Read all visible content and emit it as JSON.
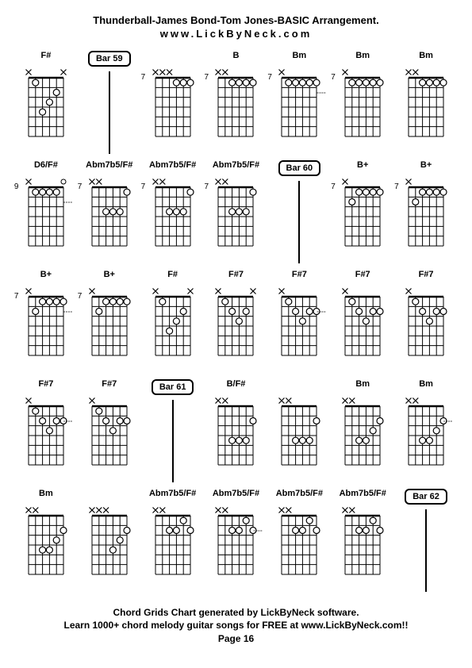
{
  "title": "Thunderball-James Bond-Tom Jones-BASIC Arrangement.",
  "subtitle": "www.LickByNeck.com",
  "footer_line1": "Chord Grids Chart generated by LickByNeck software.",
  "footer_line2": "Learn 1000+ chord melody guitar songs for FREE at www.LickByNeck.com!!",
  "page": "Page 16",
  "diagram": {
    "width": 56,
    "height": 92,
    "strings": 6,
    "frets": 6,
    "grid_color": "#000000",
    "dot_color": "#ffffff",
    "dot_stroke": "#000000",
    "dot_radius": 4,
    "mute_size": 8
  },
  "cells": [
    {
      "type": "chord",
      "name": "F#",
      "fret": "",
      "mutes": [
        0,
        5
      ],
      "dots": [
        [
          1,
          1
        ],
        [
          2,
          4
        ],
        [
          3,
          3
        ],
        [
          4,
          2
        ]
      ],
      "opens": [],
      "dashAfter": false
    },
    {
      "type": "bar",
      "label": "Bar 59"
    },
    {
      "type": "chord",
      "name": "",
      "fret": "7",
      "mutes": [
        0,
        1,
        2
      ],
      "dots": [
        [
          3,
          1
        ],
        [
          4,
          1
        ],
        [
          5,
          1
        ]
      ],
      "opens": [],
      "dashAfter": false
    },
    {
      "type": "chord",
      "name": "B",
      "fret": "7",
      "mutes": [
        0,
        1
      ],
      "dots": [
        [
          2,
          1
        ],
        [
          3,
          1
        ],
        [
          4,
          1
        ],
        [
          5,
          1
        ]
      ],
      "opens": [],
      "dashAfter": false
    },
    {
      "type": "chord",
      "name": "Bm",
      "fret": "7",
      "mutes": [
        0
      ],
      "dots": [
        [
          1,
          1
        ],
        [
          2,
          1
        ],
        [
          3,
          1
        ],
        [
          4,
          1
        ],
        [
          5,
          1
        ]
      ],
      "opens": [],
      "dashAfter": true
    },
    {
      "type": "chord",
      "name": "Bm",
      "fret": "7",
      "mutes": [
        0
      ],
      "dots": [
        [
          1,
          1
        ],
        [
          2,
          1
        ],
        [
          3,
          1
        ],
        [
          4,
          1
        ],
        [
          5,
          1
        ]
      ],
      "opens": [],
      "dashAfter": false
    },
    {
      "type": "chord",
      "name": "Bm",
      "fret": "",
      "mutes": [
        0,
        1
      ],
      "dots": [
        [
          2,
          1
        ],
        [
          3,
          1
        ],
        [
          4,
          1
        ],
        [
          5,
          1
        ]
      ],
      "opens": [],
      "dashAfter": false
    },
    {
      "type": "chord",
      "name": "D6/F#",
      "fret": "9",
      "mutes": [
        0
      ],
      "dots": [
        [
          1,
          1
        ],
        [
          2,
          1
        ],
        [
          3,
          1
        ],
        [
          4,
          1
        ]
      ],
      "opens": [
        5
      ],
      "dashAfter": true
    },
    {
      "type": "chord",
      "name": "Abm7b5/F#",
      "fret": "7",
      "mutes": [
        0,
        1
      ],
      "dots": [
        [
          2,
          3
        ],
        [
          3,
          3
        ],
        [
          4,
          3
        ],
        [
          5,
          1
        ]
      ],
      "opens": [],
      "dashAfter": false
    },
    {
      "type": "chord",
      "name": "Abm7b5/F#",
      "fret": "7",
      "mutes": [
        0,
        1
      ],
      "dots": [
        [
          2,
          3
        ],
        [
          3,
          3
        ],
        [
          4,
          3
        ],
        [
          5,
          1
        ]
      ],
      "opens": [],
      "dashAfter": false
    },
    {
      "type": "chord",
      "name": "Abm7b5/F#",
      "fret": "7",
      "mutes": [
        0,
        1
      ],
      "dots": [
        [
          2,
          3
        ],
        [
          3,
          3
        ],
        [
          4,
          3
        ],
        [
          5,
          1
        ]
      ],
      "opens": [],
      "dashAfter": false
    },
    {
      "type": "bar",
      "label": "Bar 60"
    },
    {
      "type": "chord",
      "name": "B+",
      "fret": "7",
      "mutes": [
        0
      ],
      "dots": [
        [
          1,
          2
        ],
        [
          2,
          1
        ],
        [
          3,
          1
        ],
        [
          4,
          1
        ],
        [
          5,
          1
        ]
      ],
      "opens": [],
      "dashAfter": false
    },
    {
      "type": "chord",
      "name": "B+",
      "fret": "7",
      "mutes": [
        0
      ],
      "dots": [
        [
          1,
          2
        ],
        [
          2,
          1
        ],
        [
          3,
          1
        ],
        [
          4,
          1
        ],
        [
          5,
          1
        ]
      ],
      "opens": [],
      "dashAfter": false
    },
    {
      "type": "chord",
      "name": "B+",
      "fret": "7",
      "mutes": [
        0
      ],
      "dots": [
        [
          1,
          2
        ],
        [
          2,
          1
        ],
        [
          3,
          1
        ],
        [
          4,
          1
        ],
        [
          5,
          1
        ]
      ],
      "opens": [],
      "dashAfter": true
    },
    {
      "type": "chord",
      "name": "B+",
      "fret": "7",
      "mutes": [
        0
      ],
      "dots": [
        [
          1,
          2
        ],
        [
          2,
          1
        ],
        [
          3,
          1
        ],
        [
          4,
          1
        ],
        [
          5,
          1
        ]
      ],
      "opens": [],
      "dashAfter": false
    },
    {
      "type": "chord",
      "name": "F#",
      "fret": "",
      "mutes": [
        0,
        5
      ],
      "dots": [
        [
          1,
          1
        ],
        [
          2,
          4
        ],
        [
          3,
          3
        ],
        [
          4,
          2
        ]
      ],
      "opens": [],
      "dashAfter": false
    },
    {
      "type": "chord",
      "name": "F#7",
      "fret": "",
      "mutes": [
        0,
        5
      ],
      "dots": [
        [
          1,
          1
        ],
        [
          2,
          2
        ],
        [
          3,
          3
        ],
        [
          4,
          2
        ]
      ],
      "opens": [],
      "dashAfter": false
    },
    {
      "type": "chord",
      "name": "F#7",
      "fret": "",
      "mutes": [
        0
      ],
      "dots": [
        [
          1,
          1
        ],
        [
          2,
          2
        ],
        [
          3,
          3
        ],
        [
          4,
          2
        ],
        [
          5,
          2
        ]
      ],
      "opens": [],
      "dashAfter": true
    },
    {
      "type": "chord",
      "name": "F#7",
      "fret": "",
      "mutes": [
        0
      ],
      "dots": [
        [
          1,
          1
        ],
        [
          2,
          2
        ],
        [
          3,
          3
        ],
        [
          4,
          2
        ],
        [
          5,
          2
        ]
      ],
      "opens": [],
      "dashAfter": false
    },
    {
      "type": "chord",
      "name": "F#7",
      "fret": "",
      "mutes": [
        0
      ],
      "dots": [
        [
          1,
          1
        ],
        [
          2,
          2
        ],
        [
          3,
          3
        ],
        [
          4,
          2
        ],
        [
          5,
          2
        ]
      ],
      "opens": [],
      "dashAfter": false
    },
    {
      "type": "chord",
      "name": "F#7",
      "fret": "",
      "mutes": [
        0
      ],
      "dots": [
        [
          1,
          1
        ],
        [
          2,
          2
        ],
        [
          3,
          3
        ],
        [
          4,
          2
        ],
        [
          5,
          2
        ]
      ],
      "opens": [],
      "dashAfter": true
    },
    {
      "type": "chord",
      "name": "F#7",
      "fret": "",
      "mutes": [
        0
      ],
      "dots": [
        [
          1,
          1
        ],
        [
          2,
          2
        ],
        [
          3,
          3
        ],
        [
          4,
          2
        ],
        [
          5,
          2
        ]
      ],
      "opens": [],
      "dashAfter": false
    },
    {
      "type": "bar",
      "label": "Bar 61"
    },
    {
      "type": "chord",
      "name": "B/F#",
      "fret": "",
      "mutes": [
        0,
        1
      ],
      "dots": [
        [
          2,
          4
        ],
        [
          3,
          4
        ],
        [
          4,
          4
        ],
        [
          5,
          2
        ]
      ],
      "opens": [],
      "dashAfter": false
    },
    {
      "type": "chord",
      "name": "",
      "fret": "",
      "mutes": [
        0,
        1
      ],
      "dots": [
        [
          2,
          4
        ],
        [
          3,
          4
        ],
        [
          4,
          4
        ],
        [
          5,
          2
        ]
      ],
      "opens": [],
      "dashAfter": false
    },
    {
      "type": "chord",
      "name": "Bm",
      "fret": "",
      "mutes": [
        0,
        1
      ],
      "dots": [
        [
          2,
          4
        ],
        [
          3,
          4
        ],
        [
          4,
          3
        ],
        [
          5,
          2
        ]
      ],
      "opens": [],
      "dashAfter": false
    },
    {
      "type": "chord",
      "name": "Bm",
      "fret": "",
      "mutes": [
        0,
        1
      ],
      "dots": [
        [
          2,
          4
        ],
        [
          3,
          4
        ],
        [
          4,
          3
        ],
        [
          5,
          2
        ]
      ],
      "opens": [],
      "dashAfter": true
    },
    {
      "type": "chord",
      "name": "Bm",
      "fret": "",
      "mutes": [
        0,
        1
      ],
      "dots": [
        [
          2,
          4
        ],
        [
          3,
          4
        ],
        [
          4,
          3
        ],
        [
          5,
          2
        ]
      ],
      "opens": [],
      "dashAfter": false
    },
    {
      "type": "chord",
      "name": "",
      "fret": "",
      "mutes": [
        0,
        1,
        2
      ],
      "dots": [
        [
          3,
          4
        ],
        [
          4,
          3
        ],
        [
          5,
          2
        ]
      ],
      "opens": [],
      "dashAfter": false
    },
    {
      "type": "chord",
      "name": "Abm7b5/F#",
      "fret": "",
      "mutes": [
        0,
        1
      ],
      "dots": [
        [
          2,
          2
        ],
        [
          3,
          2
        ],
        [
          4,
          1
        ],
        [
          5,
          2
        ]
      ],
      "opens": [],
      "dashAfter": false
    },
    {
      "type": "chord",
      "name": "Abm7b5/F#",
      "fret": "",
      "mutes": [
        0,
        1
      ],
      "dots": [
        [
          2,
          2
        ],
        [
          3,
          2
        ],
        [
          4,
          1
        ],
        [
          5,
          2
        ]
      ],
      "opens": [],
      "dashAfter": true
    },
    {
      "type": "chord",
      "name": "Abm7b5/F#",
      "fret": "",
      "mutes": [
        0,
        1
      ],
      "dots": [
        [
          2,
          2
        ],
        [
          3,
          2
        ],
        [
          4,
          1
        ],
        [
          5,
          2
        ]
      ],
      "opens": [],
      "dashAfter": false
    },
    {
      "type": "chord",
      "name": "Abm7b5/F#",
      "fret": "",
      "mutes": [
        0,
        1
      ],
      "dots": [
        [
          2,
          2
        ],
        [
          3,
          2
        ],
        [
          4,
          1
        ],
        [
          5,
          2
        ]
      ],
      "opens": [],
      "dashAfter": false
    },
    {
      "type": "bar",
      "label": "Bar 62"
    }
  ]
}
